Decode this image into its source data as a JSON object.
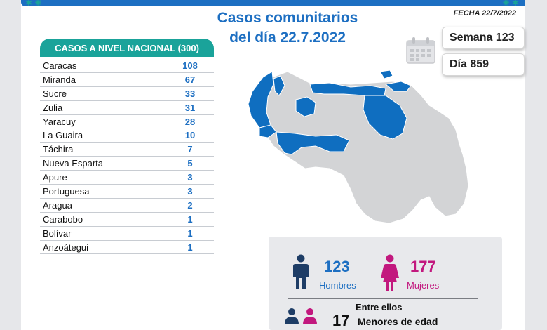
{
  "header": {
    "title_line1": "Casos comunitarios",
    "title_line2": "del día 22.7.2022",
    "fecha": "FECHA 22/7/2022"
  },
  "badges": {
    "semana": "Semana 123",
    "dia": "Día 859"
  },
  "table": {
    "header": "CASOS A NIVEL NACIONAL  (300)",
    "rows": [
      {
        "state": "Caracas",
        "cases": "108"
      },
      {
        "state": "Miranda",
        "cases": "67"
      },
      {
        "state": "Sucre",
        "cases": "33"
      },
      {
        "state": "Zulia",
        "cases": "31"
      },
      {
        "state": "Yaracuy",
        "cases": "28"
      },
      {
        "state": "La Guaira",
        "cases": "10"
      },
      {
        "state": "Táchira",
        "cases": "7"
      },
      {
        "state": "Nueva Esparta",
        "cases": "5"
      },
      {
        "state": "Apure",
        "cases": "3"
      },
      {
        "state": "Portuguesa",
        "cases": "3"
      },
      {
        "state": "Aragua",
        "cases": "2"
      },
      {
        "state": "Carabobo",
        "cases": "1"
      },
      {
        "state": "Bolívar",
        "cases": "1"
      },
      {
        "state": "Anzoátegui",
        "cases": "1"
      }
    ]
  },
  "stats": {
    "men_count": "123",
    "men_label": "Hombres",
    "women_count": "177",
    "women_label": "Mujeres",
    "among_label": "Entre ellos",
    "minors_count": "17",
    "minors_label": "Menores de edad"
  },
  "colors": {
    "primary_blue": "#1d6fc2",
    "teal": "#1aa39a",
    "women_pink": "#c2187e",
    "men_navy": "#1e3d66",
    "map_grey": "#d3d4d6",
    "map_highlight": "#0f6ec0"
  },
  "icons": {
    "calendar": "calendar-icon",
    "man": "man-icon",
    "woman": "woman-icon",
    "family": "family-icon"
  }
}
